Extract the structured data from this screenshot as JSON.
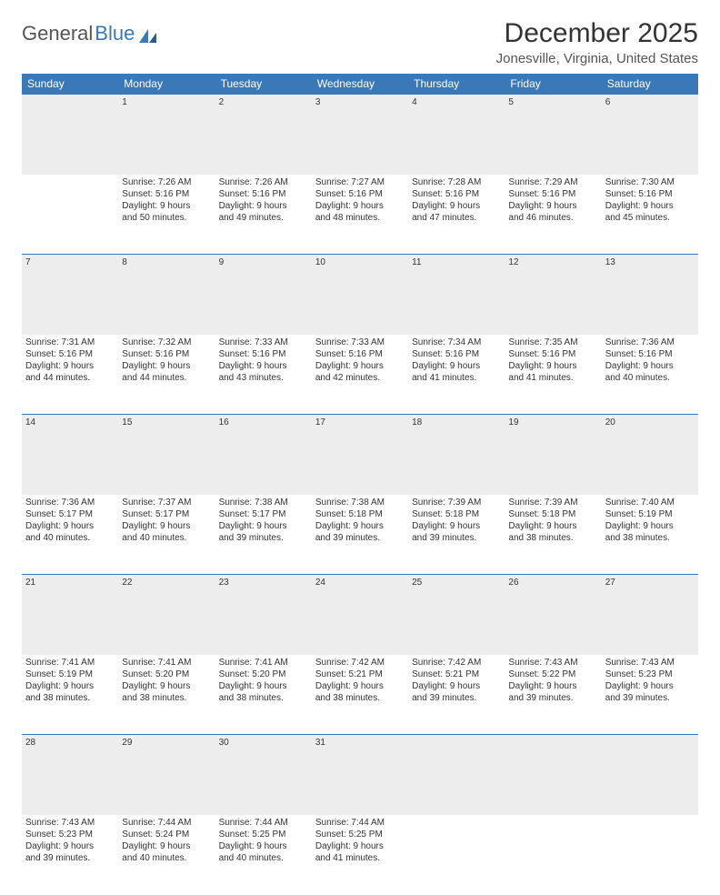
{
  "logo": {
    "text1": "General",
    "text2": "Blue"
  },
  "title": "December 2025",
  "location": "Jonesville, Virginia, United States",
  "colors": {
    "header_bg": "#3b78b8",
    "header_text": "#ffffff",
    "daynum_bg": "#ededed",
    "border": "#3b78b8",
    "text": "#333333"
  },
  "weekdays": [
    "Sunday",
    "Monday",
    "Tuesday",
    "Wednesday",
    "Thursday",
    "Friday",
    "Saturday"
  ],
  "weeks": [
    {
      "nums": [
        "",
        "1",
        "2",
        "3",
        "4",
        "5",
        "6"
      ],
      "cells": [
        null,
        {
          "sunrise": "Sunrise: 7:26 AM",
          "sunset": "Sunset: 5:16 PM",
          "day1": "Daylight: 9 hours",
          "day2": "and 50 minutes."
        },
        {
          "sunrise": "Sunrise: 7:26 AM",
          "sunset": "Sunset: 5:16 PM",
          "day1": "Daylight: 9 hours",
          "day2": "and 49 minutes."
        },
        {
          "sunrise": "Sunrise: 7:27 AM",
          "sunset": "Sunset: 5:16 PM",
          "day1": "Daylight: 9 hours",
          "day2": "and 48 minutes."
        },
        {
          "sunrise": "Sunrise: 7:28 AM",
          "sunset": "Sunset: 5:16 PM",
          "day1": "Daylight: 9 hours",
          "day2": "and 47 minutes."
        },
        {
          "sunrise": "Sunrise: 7:29 AM",
          "sunset": "Sunset: 5:16 PM",
          "day1": "Daylight: 9 hours",
          "day2": "and 46 minutes."
        },
        {
          "sunrise": "Sunrise: 7:30 AM",
          "sunset": "Sunset: 5:16 PM",
          "day1": "Daylight: 9 hours",
          "day2": "and 45 minutes."
        }
      ]
    },
    {
      "nums": [
        "7",
        "8",
        "9",
        "10",
        "11",
        "12",
        "13"
      ],
      "cells": [
        {
          "sunrise": "Sunrise: 7:31 AM",
          "sunset": "Sunset: 5:16 PM",
          "day1": "Daylight: 9 hours",
          "day2": "and 44 minutes."
        },
        {
          "sunrise": "Sunrise: 7:32 AM",
          "sunset": "Sunset: 5:16 PM",
          "day1": "Daylight: 9 hours",
          "day2": "and 44 minutes."
        },
        {
          "sunrise": "Sunrise: 7:33 AM",
          "sunset": "Sunset: 5:16 PM",
          "day1": "Daylight: 9 hours",
          "day2": "and 43 minutes."
        },
        {
          "sunrise": "Sunrise: 7:33 AM",
          "sunset": "Sunset: 5:16 PM",
          "day1": "Daylight: 9 hours",
          "day2": "and 42 minutes."
        },
        {
          "sunrise": "Sunrise: 7:34 AM",
          "sunset": "Sunset: 5:16 PM",
          "day1": "Daylight: 9 hours",
          "day2": "and 41 minutes."
        },
        {
          "sunrise": "Sunrise: 7:35 AM",
          "sunset": "Sunset: 5:16 PM",
          "day1": "Daylight: 9 hours",
          "day2": "and 41 minutes."
        },
        {
          "sunrise": "Sunrise: 7:36 AM",
          "sunset": "Sunset: 5:16 PM",
          "day1": "Daylight: 9 hours",
          "day2": "and 40 minutes."
        }
      ]
    },
    {
      "nums": [
        "14",
        "15",
        "16",
        "17",
        "18",
        "19",
        "20"
      ],
      "cells": [
        {
          "sunrise": "Sunrise: 7:36 AM",
          "sunset": "Sunset: 5:17 PM",
          "day1": "Daylight: 9 hours",
          "day2": "and 40 minutes."
        },
        {
          "sunrise": "Sunrise: 7:37 AM",
          "sunset": "Sunset: 5:17 PM",
          "day1": "Daylight: 9 hours",
          "day2": "and 40 minutes."
        },
        {
          "sunrise": "Sunrise: 7:38 AM",
          "sunset": "Sunset: 5:17 PM",
          "day1": "Daylight: 9 hours",
          "day2": "and 39 minutes."
        },
        {
          "sunrise": "Sunrise: 7:38 AM",
          "sunset": "Sunset: 5:18 PM",
          "day1": "Daylight: 9 hours",
          "day2": "and 39 minutes."
        },
        {
          "sunrise": "Sunrise: 7:39 AM",
          "sunset": "Sunset: 5:18 PM",
          "day1": "Daylight: 9 hours",
          "day2": "and 39 minutes."
        },
        {
          "sunrise": "Sunrise: 7:39 AM",
          "sunset": "Sunset: 5:18 PM",
          "day1": "Daylight: 9 hours",
          "day2": "and 38 minutes."
        },
        {
          "sunrise": "Sunrise: 7:40 AM",
          "sunset": "Sunset: 5:19 PM",
          "day1": "Daylight: 9 hours",
          "day2": "and 38 minutes."
        }
      ]
    },
    {
      "nums": [
        "21",
        "22",
        "23",
        "24",
        "25",
        "26",
        "27"
      ],
      "cells": [
        {
          "sunrise": "Sunrise: 7:41 AM",
          "sunset": "Sunset: 5:19 PM",
          "day1": "Daylight: 9 hours",
          "day2": "and 38 minutes."
        },
        {
          "sunrise": "Sunrise: 7:41 AM",
          "sunset": "Sunset: 5:20 PM",
          "day1": "Daylight: 9 hours",
          "day2": "and 38 minutes."
        },
        {
          "sunrise": "Sunrise: 7:41 AM",
          "sunset": "Sunset: 5:20 PM",
          "day1": "Daylight: 9 hours",
          "day2": "and 38 minutes."
        },
        {
          "sunrise": "Sunrise: 7:42 AM",
          "sunset": "Sunset: 5:21 PM",
          "day1": "Daylight: 9 hours",
          "day2": "and 38 minutes."
        },
        {
          "sunrise": "Sunrise: 7:42 AM",
          "sunset": "Sunset: 5:21 PM",
          "day1": "Daylight: 9 hours",
          "day2": "and 39 minutes."
        },
        {
          "sunrise": "Sunrise: 7:43 AM",
          "sunset": "Sunset: 5:22 PM",
          "day1": "Daylight: 9 hours",
          "day2": "and 39 minutes."
        },
        {
          "sunrise": "Sunrise: 7:43 AM",
          "sunset": "Sunset: 5:23 PM",
          "day1": "Daylight: 9 hours",
          "day2": "and 39 minutes."
        }
      ]
    },
    {
      "nums": [
        "28",
        "29",
        "30",
        "31",
        "",
        "",
        ""
      ],
      "cells": [
        {
          "sunrise": "Sunrise: 7:43 AM",
          "sunset": "Sunset: 5:23 PM",
          "day1": "Daylight: 9 hours",
          "day2": "and 39 minutes."
        },
        {
          "sunrise": "Sunrise: 7:44 AM",
          "sunset": "Sunset: 5:24 PM",
          "day1": "Daylight: 9 hours",
          "day2": "and 40 minutes."
        },
        {
          "sunrise": "Sunrise: 7:44 AM",
          "sunset": "Sunset: 5:25 PM",
          "day1": "Daylight: 9 hours",
          "day2": "and 40 minutes."
        },
        {
          "sunrise": "Sunrise: 7:44 AM",
          "sunset": "Sunset: 5:25 PM",
          "day1": "Daylight: 9 hours",
          "day2": "and 41 minutes."
        },
        null,
        null,
        null
      ]
    }
  ]
}
